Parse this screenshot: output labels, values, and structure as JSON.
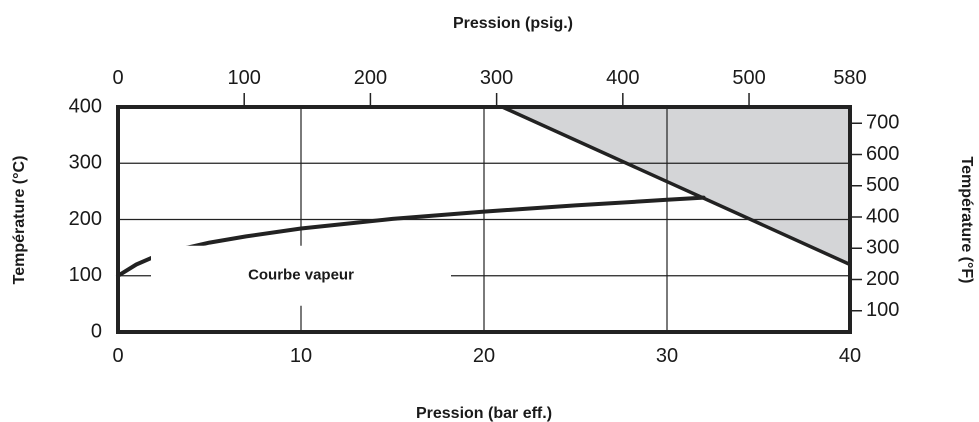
{
  "chart_data": {
    "type": "line",
    "title": "",
    "x_bottom": {
      "label": "Pression (bar eff.)",
      "range": [
        0,
        40
      ],
      "ticks": [
        0,
        10,
        20,
        30,
        40
      ]
    },
    "x_top": {
      "label": "Pression (psig.)",
      "range": [
        0,
        580
      ],
      "ticks": [
        0,
        100,
        200,
        300,
        400,
        500,
        580
      ]
    },
    "y_left": {
      "label": "Température (°C)",
      "range": [
        0,
        400
      ],
      "ticks": [
        0,
        100,
        200,
        300,
        400
      ]
    },
    "y_right": {
      "label": "Température (°F)",
      "ticks": [
        100,
        200,
        300,
        400,
        500,
        600,
        700
      ]
    },
    "grid": true,
    "series": [
      {
        "x": [
          0,
          1,
          2,
          3,
          5,
          7,
          10,
          15,
          20,
          25,
          30,
          32
        ],
        "y": [
          100,
          120,
          134,
          144,
          159,
          170,
          184,
          201,
          214,
          225,
          235,
          239
        ]
      }
    ],
    "shaded_region": {
      "vertices": [
        [
          21,
          400
        ],
        [
          40,
          400
        ],
        [
          40,
          120
        ]
      ],
      "color": "#d4d5d7"
    },
    "annotations": [
      {
        "text": "Courbe vapeur",
        "x": 10,
        "y": 100
      }
    ]
  }
}
